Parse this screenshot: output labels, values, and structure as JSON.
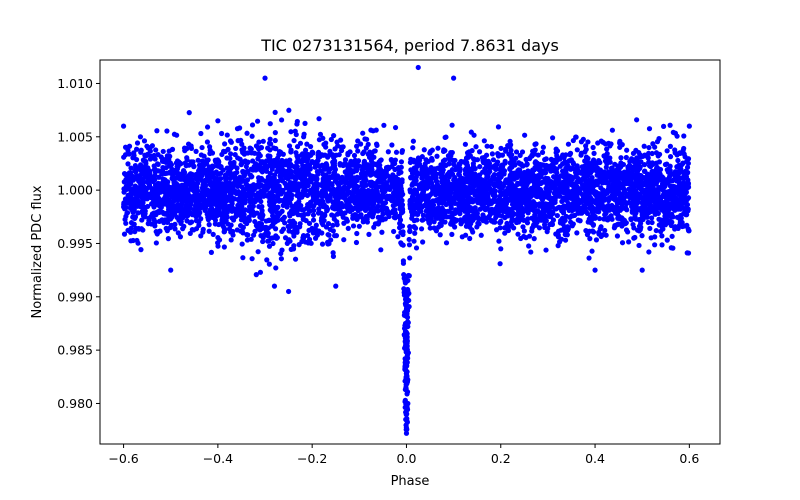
{
  "chart_data": {
    "type": "scatter",
    "title": "TIC 0273131564, period 7.8631 days",
    "xlabel": "Phase",
    "ylabel": "Normalized PDC flux",
    "xlim": [
      -0.65,
      0.665
    ],
    "ylim": [
      0.9762,
      1.0122
    ],
    "xticks": [
      -0.6,
      -0.4,
      -0.2,
      0.0,
      0.2,
      0.4,
      0.6
    ],
    "xtick_labels": [
      "−0.6",
      "−0.4",
      "−0.2",
      "0.0",
      "0.2",
      "0.4",
      "0.6"
    ],
    "yticks": [
      0.98,
      0.985,
      0.99,
      0.995,
      1.0,
      1.005,
      1.01
    ],
    "ytick_labels": [
      "0.980",
      "0.985",
      "0.990",
      "0.995",
      "1.000",
      "1.005",
      "1.010"
    ],
    "marker_color": "#0000ff",
    "grid": false,
    "series": [
      {
        "name": "PDC flux",
        "x_range": [
          -0.6,
          0.6
        ],
        "baseline": 1.0,
        "out_of_transit_scatter": 0.002,
        "transit_center": 0.0,
        "transit_depth": 0.022,
        "transit_halfwidth": 0.008,
        "n_points": 5200
      }
    ],
    "sample_points": [
      [
        -0.6,
        1.006
      ],
      [
        -0.5,
        0.9925
      ],
      [
        -0.4,
        1.0065
      ],
      [
        -0.3,
        1.0105
      ],
      [
        -0.28,
        0.991
      ],
      [
        -0.25,
        0.9905
      ],
      [
        -0.15,
        0.991
      ],
      [
        0.0,
        0.9772
      ],
      [
        0.0,
        0.979
      ],
      [
        0.001,
        0.9825
      ],
      [
        -0.002,
        0.9875
      ],
      [
        0.025,
        1.0115
      ],
      [
        0.1,
        1.0105
      ],
      [
        0.2,
        0.9945
      ],
      [
        0.4,
        0.9925
      ],
      [
        0.5,
        0.9925
      ],
      [
        0.6,
        1.006
      ]
    ]
  }
}
